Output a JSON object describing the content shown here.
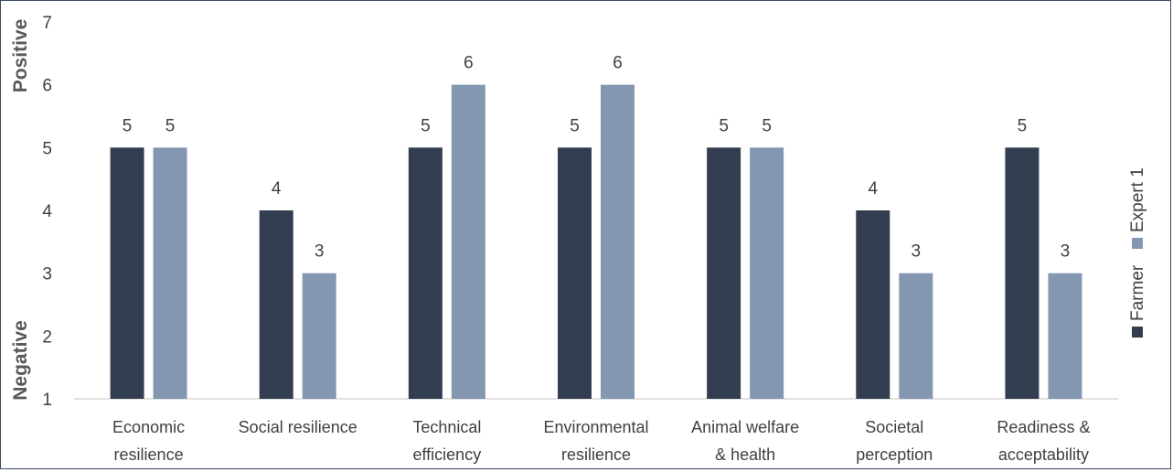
{
  "chart_data": {
    "type": "bar",
    "categories": [
      [
        "Economic",
        "resilience"
      ],
      [
        "Social resilience"
      ],
      [
        "Technical",
        "efficiency"
      ],
      [
        "Environmental",
        "resilience"
      ],
      [
        "Animal welfare",
        "& health"
      ],
      [
        "Societal",
        "perception"
      ],
      [
        "Readiness &",
        "acceptability"
      ]
    ],
    "series": [
      {
        "name": "Farmer",
        "color": "#323e50",
        "values": [
          5,
          4,
          5,
          5,
          5,
          4,
          5
        ]
      },
      {
        "name": "Expert 1",
        "color": "#8497b0",
        "values": [
          5,
          3,
          6,
          6,
          5,
          3,
          3
        ]
      }
    ],
    "ylim": [
      1,
      7
    ],
    "yticks": [
      "1",
      "2",
      "3",
      "4",
      "5",
      "6",
      "7"
    ],
    "y_side_labels": {
      "top": "Positive",
      "bottom": "Negative"
    },
    "legend_position": "right",
    "grid": false
  }
}
